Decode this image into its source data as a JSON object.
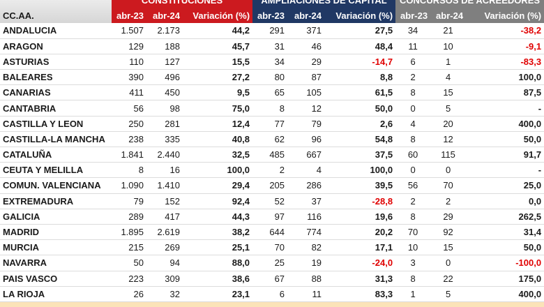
{
  "table": {
    "groups": [
      "CONSTITUCIONES",
      "AMPLIACIONES DE CAPITAL",
      "CONCURSOS DE ACREEDORES"
    ],
    "columns": [
      "CC.AA.",
      "abr-23",
      "abr-24",
      "Variación (%)",
      "abr-23",
      "abr-24",
      "Variación (%)",
      "abr-23",
      "abr-24",
      "Variación (%)"
    ],
    "rows": [
      [
        "ANDALUCIA",
        "1.507",
        "2.173",
        "44,2",
        "291",
        "371",
        "27,5",
        "34",
        "21",
        "-38,2"
      ],
      [
        "ARAGON",
        "129",
        "188",
        "45,7",
        "31",
        "46",
        "48,4",
        "11",
        "10",
        "-9,1"
      ],
      [
        "ASTURIAS",
        "110",
        "127",
        "15,5",
        "34",
        "29",
        "-14,7",
        "6",
        "1",
        "-83,3"
      ],
      [
        "BALEARES",
        "390",
        "496",
        "27,2",
        "80",
        "87",
        "8,8",
        "2",
        "4",
        "100,0"
      ],
      [
        "CANARIAS",
        "411",
        "450",
        "9,5",
        "65",
        "105",
        "61,5",
        "8",
        "15",
        "87,5"
      ],
      [
        "CANTABRIA",
        "56",
        "98",
        "75,0",
        "8",
        "12",
        "50,0",
        "0",
        "5",
        "-"
      ],
      [
        "CASTILLA Y LEON",
        "250",
        "281",
        "12,4",
        "77",
        "79",
        "2,6",
        "4",
        "20",
        "400,0"
      ],
      [
        "CASTILLA-LA MANCHA",
        "238",
        "335",
        "40,8",
        "62",
        "96",
        "54,8",
        "8",
        "12",
        "50,0"
      ],
      [
        "CATALUÑA",
        "1.841",
        "2.440",
        "32,5",
        "485",
        "667",
        "37,5",
        "60",
        "115",
        "91,7"
      ],
      [
        "CEUTA Y MELILLA",
        "8",
        "16",
        "100,0",
        "2",
        "4",
        "100,0",
        "0",
        "0",
        "-"
      ],
      [
        "COMUN. VALENCIANA",
        "1.090",
        "1.410",
        "29,4",
        "205",
        "286",
        "39,5",
        "56",
        "70",
        "25,0"
      ],
      [
        "EXTREMADURA",
        "79",
        "152",
        "92,4",
        "52",
        "37",
        "-28,8",
        "2",
        "2",
        "0,0"
      ],
      [
        "GALICIA",
        "289",
        "417",
        "44,3",
        "97",
        "116",
        "19,6",
        "8",
        "29",
        "262,5"
      ],
      [
        "MADRID",
        "1.895",
        "2.619",
        "38,2",
        "644",
        "774",
        "20,2",
        "70",
        "92",
        "31,4"
      ],
      [
        "MURCIA",
        "215",
        "269",
        "25,1",
        "70",
        "82",
        "17,1",
        "10",
        "15",
        "50,0"
      ],
      [
        "NAVARRA",
        "50",
        "94",
        "88,0",
        "25",
        "19",
        "-24,0",
        "3",
        "0",
        "-100,0"
      ],
      [
        "PAIS VASCO",
        "223",
        "309",
        "38,6",
        "67",
        "88",
        "31,3",
        "8",
        "22",
        "175,0"
      ],
      [
        "LA RIOJA",
        "26",
        "32",
        "23,1",
        "6",
        "11",
        "83,3",
        "1",
        "5",
        "400,0"
      ]
    ]
  }
}
